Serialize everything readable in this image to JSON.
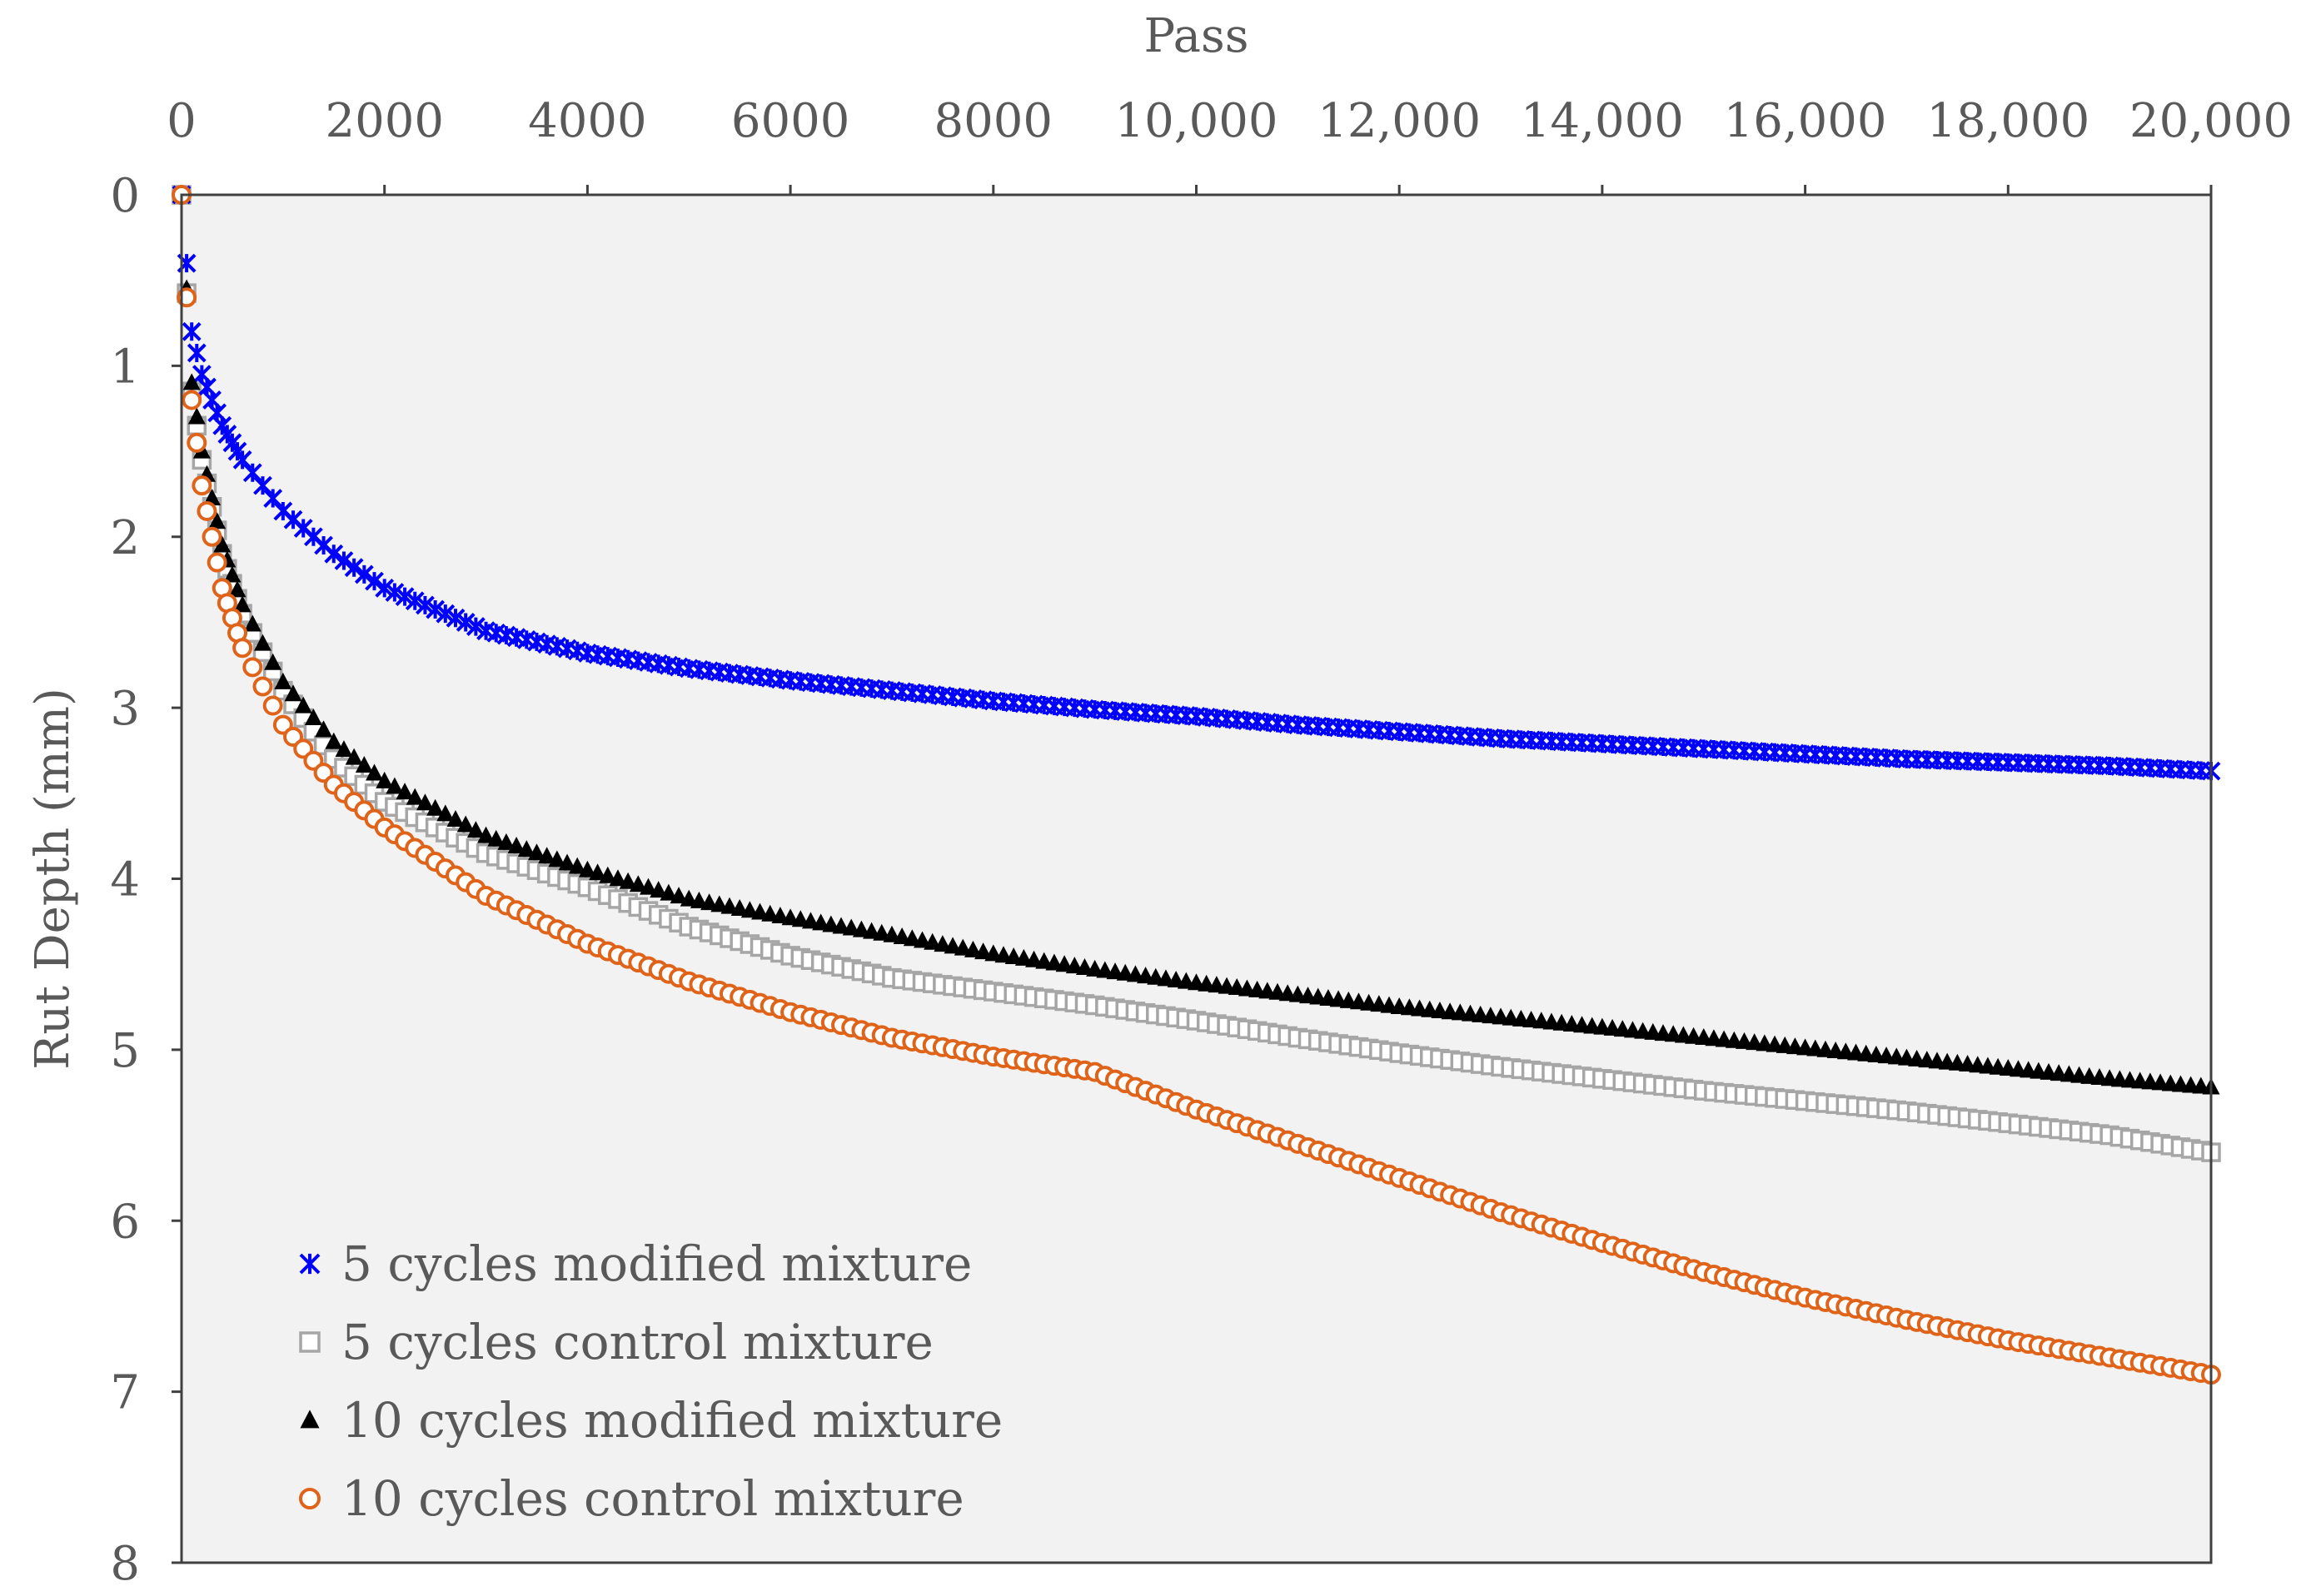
{
  "chart_data": {
    "type": "scatter",
    "title": "",
    "xlabel": "Pass",
    "ylabel": "Rut Depth (mm)",
    "xlim": [
      0,
      20000
    ],
    "ylim": [
      0,
      8
    ],
    "y_inverted": true,
    "x_axis_position": "top",
    "x_ticks": [
      0,
      2000,
      4000,
      6000,
      8000,
      10000,
      12000,
      14000,
      16000,
      18000,
      20000
    ],
    "x_tick_labels": [
      "0",
      "2000",
      "4000",
      "6000",
      "8000",
      "10,000",
      "12,000",
      "14,000",
      "16,000",
      "18,000",
      "20,000"
    ],
    "y_ticks": [
      0,
      1,
      2,
      3,
      4,
      5,
      6,
      7,
      8
    ],
    "y_tick_labels": [
      "0",
      "1",
      "2",
      "3",
      "4",
      "5",
      "6",
      "7",
      "8"
    ],
    "legend_position": "bottom-left",
    "plot_background": "#f2f2f2",
    "series": [
      {
        "name": "5 cycles modified mixture",
        "marker": "star",
        "color": "#0000ff",
        "x": [
          0,
          100,
          200,
          400,
          600,
          1000,
          1500,
          2000,
          3000,
          4000,
          5000,
          6000,
          7000,
          8000,
          9000,
          10000,
          11000,
          12000,
          13000,
          14000,
          15000,
          16000,
          17000,
          18000,
          19000,
          20000
        ],
        "y": [
          0,
          0.8,
          1.05,
          1.35,
          1.55,
          1.85,
          2.1,
          2.3,
          2.55,
          2.68,
          2.77,
          2.84,
          2.9,
          2.96,
          3.01,
          3.05,
          3.1,
          3.14,
          3.18,
          3.21,
          3.24,
          3.27,
          3.3,
          3.32,
          3.34,
          3.37
        ]
      },
      {
        "name": "5 cycles control mixture",
        "marker": "square",
        "color": "#a6a6a6",
        "x": [
          0,
          100,
          200,
          400,
          600,
          1000,
          1500,
          2000,
          3000,
          4000,
          5000,
          6000,
          7000,
          8000,
          9000,
          10000,
          11000,
          12000,
          13000,
          14000,
          15000,
          16000,
          17000,
          18000,
          19000,
          20000
        ],
        "y": [
          0,
          1.15,
          1.55,
          2.1,
          2.45,
          2.9,
          3.3,
          3.55,
          3.85,
          4.05,
          4.28,
          4.45,
          4.58,
          4.66,
          4.74,
          4.83,
          4.93,
          5.02,
          5.1,
          5.17,
          5.24,
          5.3,
          5.36,
          5.43,
          5.5,
          5.6
        ]
      },
      {
        "name": "10 cycles modified mixture",
        "marker": "triangle",
        "color": "#000000",
        "x": [
          0,
          100,
          200,
          400,
          600,
          1000,
          1500,
          2000,
          3000,
          4000,
          5000,
          6000,
          7000,
          8000,
          9000,
          10000,
          11000,
          12000,
          13000,
          14000,
          15000,
          16000,
          17000,
          18000,
          19000,
          20000
        ],
        "y": [
          0,
          1.1,
          1.5,
          2.05,
          2.4,
          2.85,
          3.2,
          3.43,
          3.75,
          3.95,
          4.12,
          4.23,
          4.33,
          4.44,
          4.53,
          4.61,
          4.68,
          4.75,
          4.81,
          4.87,
          4.93,
          4.99,
          5.05,
          5.11,
          5.17,
          5.22
        ]
      },
      {
        "name": "10 cycles control mixture",
        "marker": "circle",
        "color": "#e0631a",
        "x": [
          0,
          100,
          200,
          400,
          600,
          1000,
          1500,
          2000,
          3000,
          4000,
          5000,
          6000,
          7000,
          8000,
          9000,
          10000,
          11000,
          12000,
          13000,
          14000,
          15000,
          16000,
          17000,
          18000,
          19000,
          20000
        ],
        "y": [
          0,
          1.2,
          1.7,
          2.3,
          2.65,
          3.1,
          3.45,
          3.7,
          4.1,
          4.38,
          4.6,
          4.78,
          4.93,
          5.04,
          5.13,
          5.35,
          5.55,
          5.75,
          5.95,
          6.13,
          6.3,
          6.45,
          6.58,
          6.7,
          6.8,
          6.9
        ]
      }
    ]
  }
}
